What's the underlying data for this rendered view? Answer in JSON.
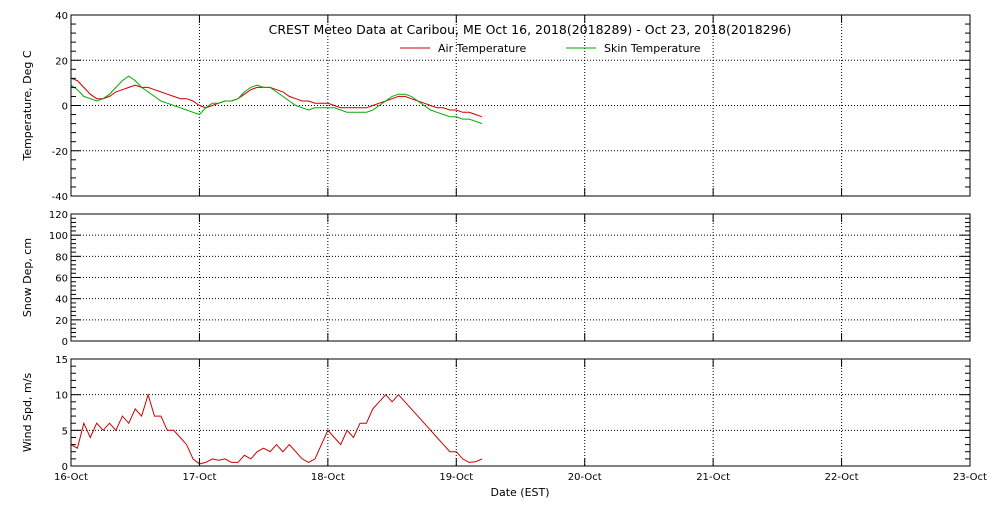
{
  "chart_data": {
    "type": "line",
    "title": "CREST Meteo Data at Caribou, ME   Oct 16, 2018(2018289) - Oct 23, 2018(2018296)",
    "xlabel": "Date (EST)",
    "x_ticks": [
      "16-Oct",
      "17-Oct",
      "18-Oct",
      "19-Oct",
      "20-Oct",
      "21-Oct",
      "22-Oct",
      "23-Oct"
    ],
    "xlim": [
      0,
      7
    ],
    "grid": true,
    "legend_position": "top-center",
    "panels": [
      {
        "ylabel": "Temperature, Deg C",
        "ylim": [
          -40,
          40
        ],
        "yticks": [
          -40,
          -20,
          0,
          20,
          40
        ],
        "series": [
          {
            "name": "Air Temperature",
            "color": "#cc0000",
            "x": [
              0.0,
              0.05,
              0.1,
              0.15,
              0.2,
              0.25,
              0.3,
              0.35,
              0.4,
              0.45,
              0.5,
              0.55,
              0.6,
              0.65,
              0.7,
              0.75,
              0.8,
              0.85,
              0.9,
              0.95,
              1.0,
              1.05,
              1.1,
              1.15,
              1.2,
              1.25,
              1.3,
              1.35,
              1.4,
              1.45,
              1.5,
              1.55,
              1.6,
              1.65,
              1.7,
              1.75,
              1.8,
              1.85,
              1.9,
              1.95,
              2.0,
              2.05,
              2.1,
              2.15,
              2.2,
              2.25,
              2.3,
              2.35,
              2.4,
              2.45,
              2.5,
              2.55,
              2.6,
              2.65,
              2.7,
              2.75,
              2.8,
              2.85,
              2.9,
              2.95,
              3.0,
              3.05,
              3.1,
              3.15,
              3.2
            ],
            "y": [
              12,
              11,
              8,
              5,
              3,
              3,
              4,
              6,
              7,
              8,
              9,
              8,
              8,
              7,
              6,
              5,
              4,
              3,
              3,
              2,
              0,
              -1,
              0,
              1,
              2,
              2,
              3,
              5,
              7,
              8,
              8,
              8,
              7,
              6,
              4,
              3,
              2,
              2,
              1,
              1,
              1,
              0,
              -1,
              -1,
              -1,
              -1,
              -1,
              0,
              1,
              2,
              3,
              4,
              4,
              3,
              2,
              1,
              0,
              -1,
              -1,
              -2,
              -2,
              -3,
              -3,
              -4,
              -5
            ]
          },
          {
            "name": "Skin Temperature",
            "color": "#00aa00",
            "x": [
              0.0,
              0.05,
              0.1,
              0.15,
              0.2,
              0.25,
              0.3,
              0.35,
              0.4,
              0.45,
              0.5,
              0.55,
              0.6,
              0.65,
              0.7,
              0.75,
              0.8,
              0.85,
              0.9,
              0.95,
              1.0,
              1.05,
              1.1,
              1.15,
              1.2,
              1.25,
              1.3,
              1.35,
              1.4,
              1.45,
              1.5,
              1.55,
              1.6,
              1.65,
              1.7,
              1.75,
              1.8,
              1.85,
              1.9,
              1.95,
              2.0,
              2.05,
              2.1,
              2.15,
              2.2,
              2.25,
              2.3,
              2.35,
              2.4,
              2.45,
              2.5,
              2.55,
              2.6,
              2.65,
              2.7,
              2.75,
              2.8,
              2.85,
              2.9,
              2.95,
              3.0,
              3.05,
              3.1,
              3.15,
              3.2
            ],
            "y": [
              9,
              7,
              4,
              3,
              2,
              3,
              5,
              8,
              11,
              13,
              11,
              8,
              6,
              4,
              2,
              1,
              0,
              -1,
              -2,
              -3,
              -4,
              -1,
              1,
              1,
              2,
              2,
              3,
              6,
              8,
              9,
              8,
              8,
              6,
              4,
              2,
              0,
              -1,
              -2,
              -1,
              -1,
              -1,
              -1,
              -2,
              -3,
              -3,
              -3,
              -3,
              -2,
              0,
              2,
              4,
              5,
              5,
              4,
              2,
              0,
              -2,
              -3,
              -4,
              -5,
              -5,
              -6,
              -6,
              -7,
              -8
            ]
          }
        ]
      },
      {
        "ylabel": "Snow Dep, cm",
        "ylim": [
          0,
          120
        ],
        "yticks": [
          0,
          20,
          40,
          60,
          80,
          100,
          120
        ],
        "series": []
      },
      {
        "ylabel": "Wind Spd, m/s",
        "ylim": [
          0,
          15
        ],
        "yticks": [
          0,
          5,
          10,
          15
        ],
        "series": [
          {
            "name": "",
            "color": "#cc0000",
            "x": [
              0.0,
              0.05,
              0.1,
              0.15,
              0.2,
              0.25,
              0.3,
              0.35,
              0.4,
              0.45,
              0.5,
              0.55,
              0.6,
              0.65,
              0.7,
              0.75,
              0.8,
              0.85,
              0.9,
              0.95,
              1.0,
              1.05,
              1.1,
              1.15,
              1.2,
              1.25,
              1.3,
              1.35,
              1.4,
              1.45,
              1.5,
              1.55,
              1.6,
              1.65,
              1.7,
              1.75,
              1.8,
              1.85,
              1.9,
              1.95,
              2.0,
              2.05,
              2.1,
              2.15,
              2.2,
              2.25,
              2.3,
              2.35,
              2.4,
              2.45,
              2.5,
              2.55,
              2.6,
              2.65,
              2.7,
              2.75,
              2.8,
              2.85,
              2.9,
              2.95,
              3.0,
              3.05,
              3.1,
              3.15,
              3.2
            ],
            "y": [
              3,
              2.5,
              6,
              4,
              6,
              5,
              6,
              5,
              7,
              6,
              8,
              7,
              10,
              7,
              7,
              5,
              5,
              4,
              3,
              1,
              0.3,
              0.5,
              1,
              0.8,
              1,
              0.5,
              0.5,
              1.5,
              1,
              2,
              2.5,
              2,
              3,
              2,
              3,
              2,
              1,
              0.5,
              1,
              3,
              5,
              4,
              3,
              5,
              4,
              6,
              6,
              8,
              9,
              10,
              9,
              10,
              9,
              8,
              7,
              6,
              5,
              4,
              3,
              2,
              2,
              1,
              0.5,
              0.6,
              1
            ]
          }
        ]
      }
    ]
  }
}
